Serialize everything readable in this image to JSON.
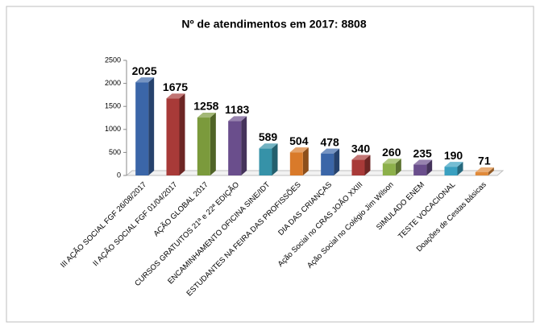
{
  "chart_data": {
    "type": "bar3d",
    "title": "Nº de atendimentos  em 2017: 8808",
    "categories": [
      "III AÇÃO SOCIAL FGF 26/08/2017",
      "II AÇÃO SOCIAL FGF 01/04/2017",
      "AÇÃO GLOBAL 2017",
      "CURSOS GRATUITOS 21ª e 22ª EDIÇÃO",
      "ENCAMINHAMENTO OFICINA SINE/IDT",
      "ESTUDANTES NA FEIRA DAS PROFISSÕES",
      "DIA DAS CRIANÇAS",
      "Ação Social no CRAS JOÃO XXIII",
      "Ação Social no Colégio Jim Wilson",
      "SIMULADO ENEM",
      "TESTE VOCACIONAL",
      "Doações de Cestas básicas"
    ],
    "values": [
      2025,
      1675,
      1258,
      1183,
      589,
      504,
      478,
      340,
      260,
      235,
      190,
      71
    ],
    "colors": [
      "#3b66a8",
      "#a83a38",
      "#7b9a3c",
      "#6a4e8c",
      "#3692a8",
      "#d97a2a",
      "#3b66a8",
      "#a83a38",
      "#8cb04a",
      "#6a4e8c",
      "#3aa0c0",
      "#e08a3a"
    ],
    "ylim": [
      0,
      2500
    ],
    "yticks": [
      0,
      500,
      1000,
      1500,
      2000,
      2500
    ]
  }
}
